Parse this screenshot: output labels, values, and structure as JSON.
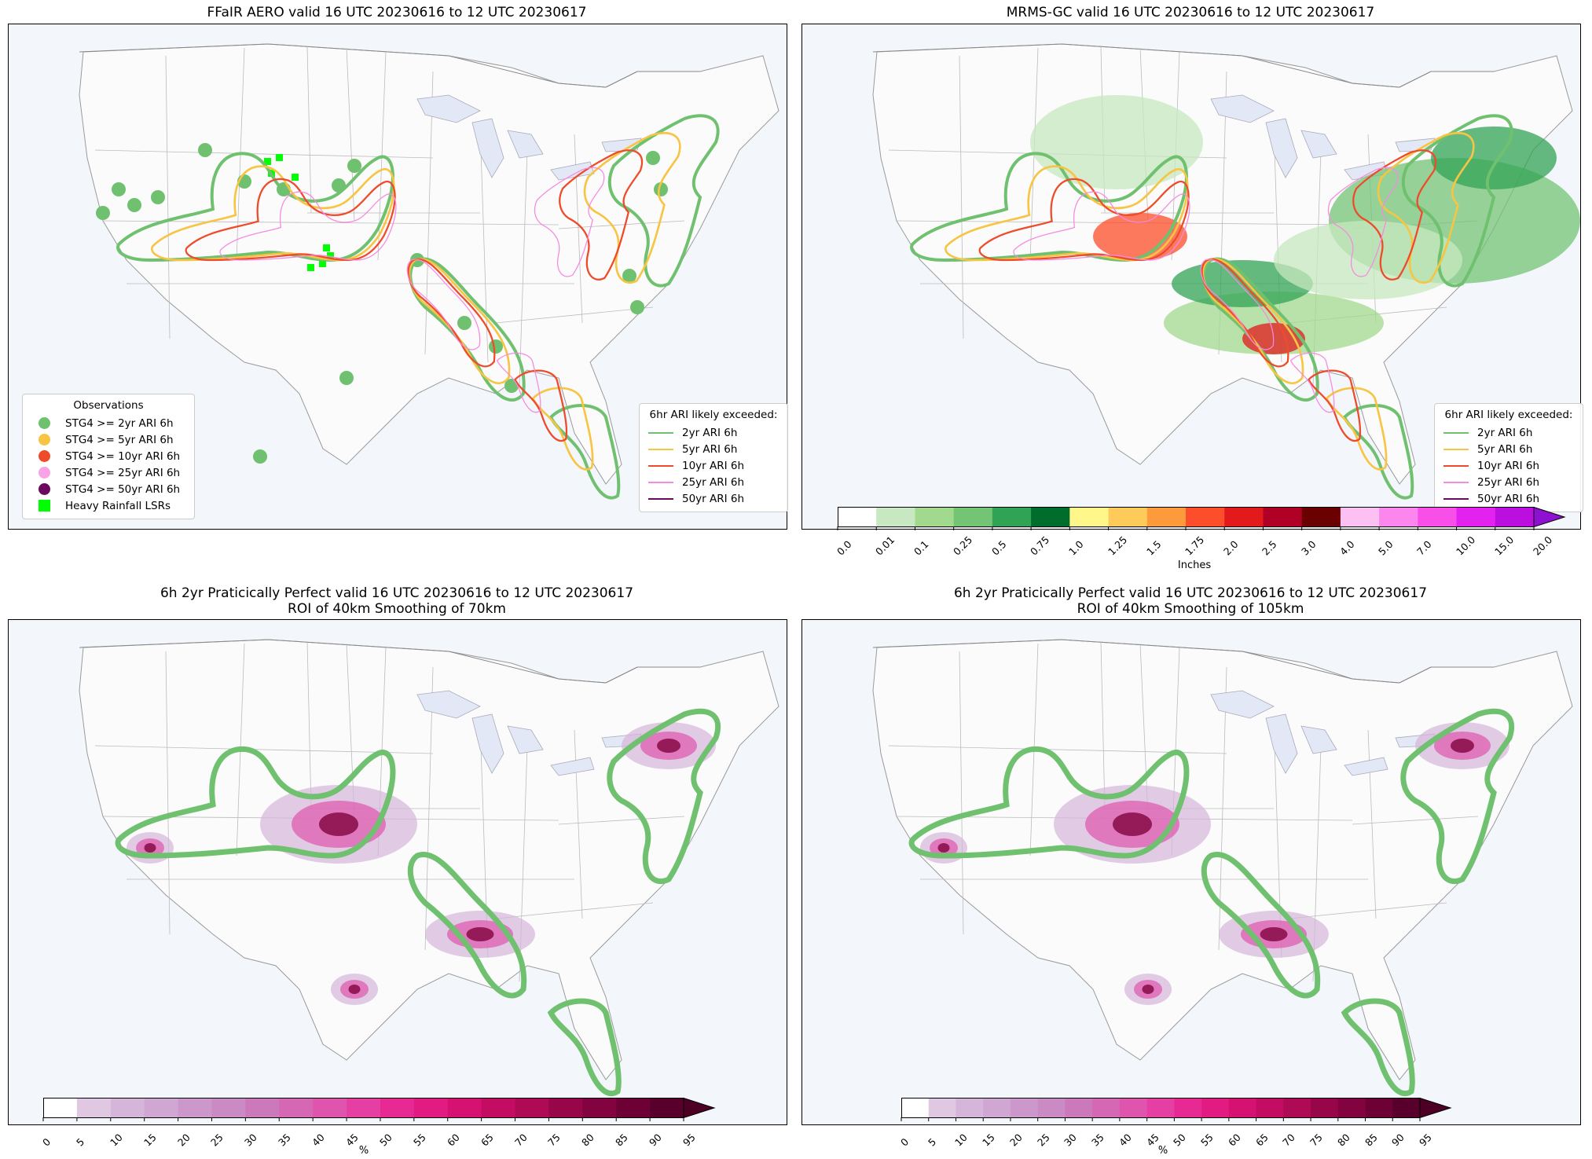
{
  "panels": [
    {
      "id": "aero",
      "title": "FFaIR AERO valid 16 UTC 20230616 to 12 UTC 20230617",
      "obs_legend": {
        "title": "Observations",
        "items": [
          {
            "label": "STG4 >= 2yr ARI 6h",
            "color": "#6fc06f",
            "marker": "circle"
          },
          {
            "label": "STG4 >= 5yr ARI 6h",
            "color": "#f7c443",
            "marker": "circle"
          },
          {
            "label": "STG4 >= 10yr ARI 6h",
            "color": "#ee4b2b",
            "marker": "circle"
          },
          {
            "label": "STG4 >= 25yr ARI 6h",
            "color": "#f8a3e6",
            "marker": "circle"
          },
          {
            "label": "STG4 >= 50yr ARI 6h",
            "color": "#6b0a5c",
            "marker": "circle"
          },
          {
            "label": "Heavy Rainfall LSRs",
            "color": "#00ff00",
            "marker": "square"
          }
        ]
      },
      "ari_legend": {
        "title": "6hr ARI likely exceeded:",
        "items": [
          {
            "label": "2yr ARI 6h",
            "color": "#6fc06f"
          },
          {
            "label": "5yr ARI 6h",
            "color": "#f7c443"
          },
          {
            "label": "10yr ARI 6h",
            "color": "#ee4b2b"
          },
          {
            "label": "25yr ARI 6h",
            "color": "#f58be0"
          },
          {
            "label": "50yr ARI 6h",
            "color": "#6b0a5c"
          }
        ]
      }
    },
    {
      "id": "mrms",
      "title": "MRMS-GC valid 16 UTC 20230616 to 12 UTC 20230617",
      "ari_legend": {
        "title": "6hr ARI likely exceeded:",
        "items": [
          {
            "label": "2yr ARI 6h",
            "color": "#6fc06f"
          },
          {
            "label": "5yr ARI 6h",
            "color": "#f7c443"
          },
          {
            "label": "10yr ARI 6h",
            "color": "#ee4b2b"
          },
          {
            "label": "25yr ARI 6h",
            "color": "#f58be0"
          },
          {
            "label": "50yr ARI 6h",
            "color": "#6b0a5c"
          }
        ]
      },
      "colorbar": {
        "label": "Inches",
        "ticks": [
          "0.0",
          "0.01",
          "0.1",
          "0.25",
          "0.5",
          "0.75",
          "1.0",
          "1.25",
          "1.5",
          "1.75",
          "2.0",
          "2.5",
          "3.0",
          "4.0",
          "5.0",
          "7.0",
          "10.0",
          "15.0",
          "20.0"
        ],
        "colors": [
          "#ffffff",
          "#c7e8c0",
          "#a1da8f",
          "#74c476",
          "#31a354",
          "#006d2c",
          "#fff78a",
          "#fecb5b",
          "#fd9b3c",
          "#fc4e2a",
          "#e31a1c",
          "#b10026",
          "#6b0000",
          "#fdc0f2",
          "#fb86ed",
          "#f74fe8",
          "#e322f0",
          "#bb0fe0"
        ],
        "extend_color": "#8e10d0"
      }
    },
    {
      "id": "pp70",
      "title": "6h 2yr Praticically Perfect valid 16 UTC 20230616 to 12 UTC 20230617\nROI of 40km Smoothing of 70km",
      "colorbar": {
        "label": "%",
        "ticks": [
          "0",
          "5",
          "10",
          "15",
          "20",
          "25",
          "30",
          "35",
          "40",
          "45",
          "50",
          "55",
          "60",
          "65",
          "70",
          "75",
          "80",
          "85",
          "90",
          "95"
        ],
        "colors": [
          "#ffffff",
          "#e0c7e2",
          "#d6b5da",
          "#d0a6d2",
          "#cc98cb",
          "#ca8ac4",
          "#cc79bc",
          "#d568b5",
          "#df55ad",
          "#e63fa3",
          "#e72a93",
          "#e21b82",
          "#d51171",
          "#c30d62",
          "#ae0a55",
          "#98064a",
          "#82033f",
          "#6d0135",
          "#58002b"
        ],
        "extend_color": "#4d0024"
      }
    },
    {
      "id": "pp105",
      "title": "6h 2yr Praticically Perfect valid 16 UTC 20230616 to 12 UTC 20230617\nROI of 40km Smoothing of 105km",
      "colorbar": {
        "label": "%",
        "ticks": [
          "0",
          "5",
          "10",
          "15",
          "20",
          "25",
          "30",
          "35",
          "40",
          "45",
          "50",
          "55",
          "60",
          "65",
          "70",
          "75",
          "80",
          "85",
          "90",
          "95"
        ],
        "colors": [
          "#ffffff",
          "#e0c7e2",
          "#d6b5da",
          "#d0a6d2",
          "#cc98cb",
          "#ca8ac4",
          "#cc79bc",
          "#d568b5",
          "#df55ad",
          "#e63fa3",
          "#e72a93",
          "#e21b82",
          "#d51171",
          "#c30d62",
          "#ae0a55",
          "#98064a",
          "#82033f",
          "#6d0135",
          "#58002b"
        ],
        "extend_color": "#4d0024"
      }
    }
  ]
}
